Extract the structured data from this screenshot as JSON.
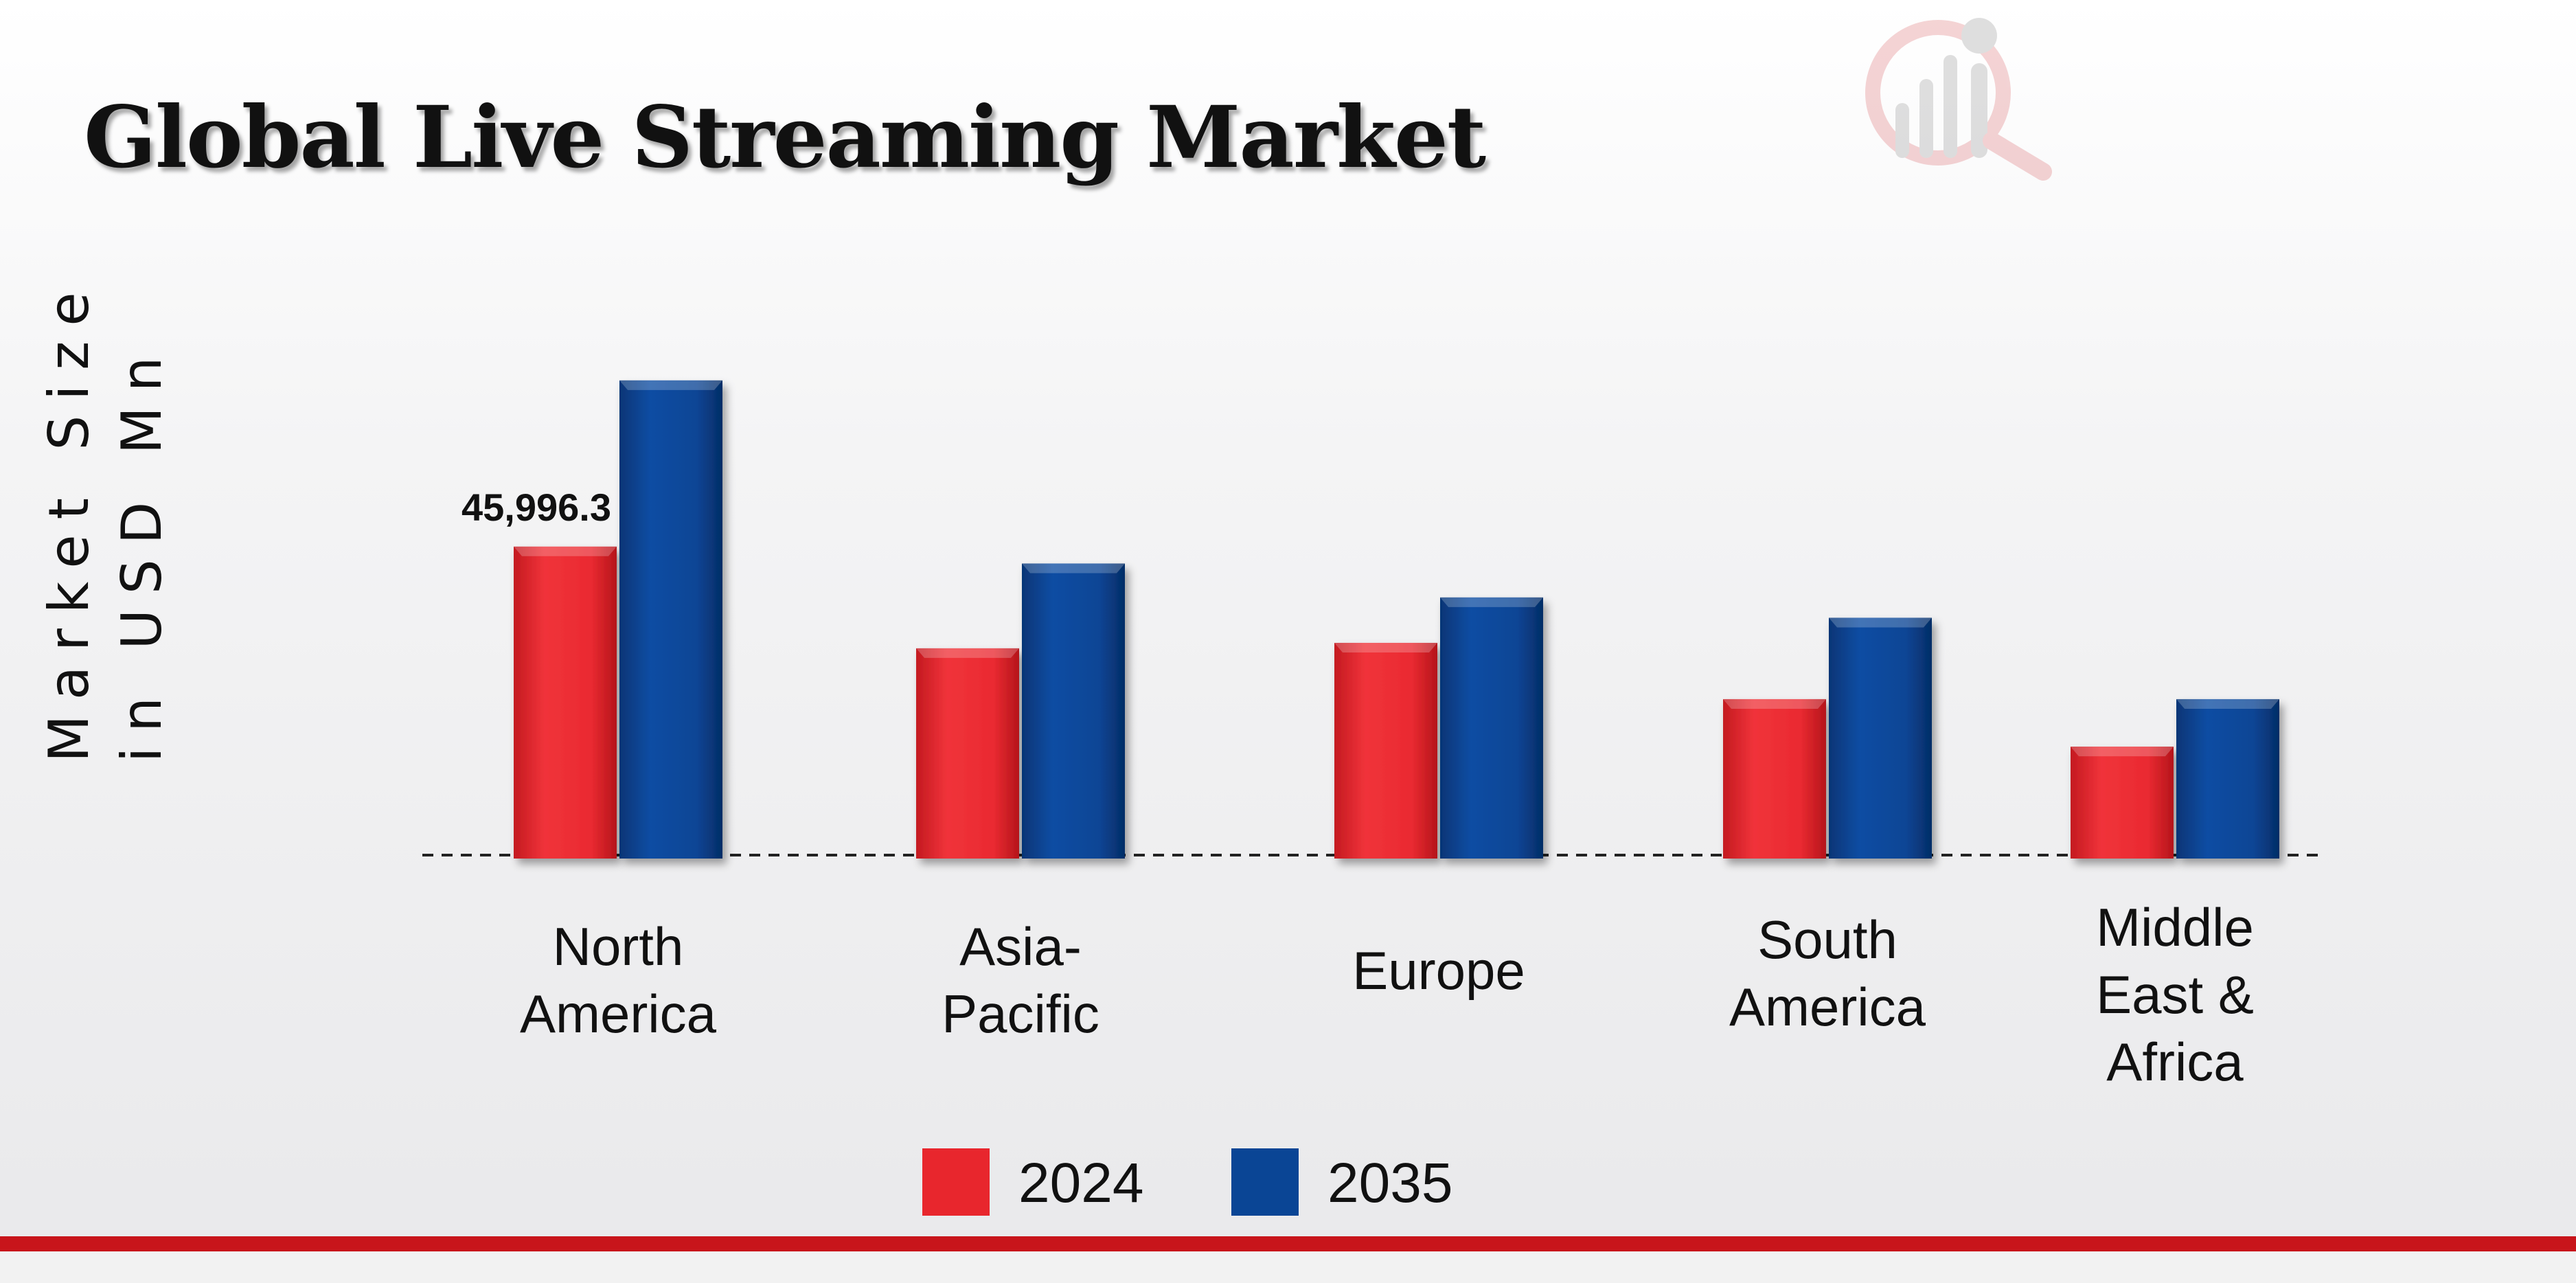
{
  "chart_data": {
    "type": "bar",
    "title": "Global Live Streaming Market",
    "ylabel": [
      "Market Size",
      "in USD Mn"
    ],
    "xlabel": "",
    "categories": [
      [
        "North",
        "America"
      ],
      [
        "Asia-",
        "Pacific"
      ],
      [
        "Europe"
      ],
      [
        "South",
        "America"
      ],
      [
        "Middle",
        "East &",
        "Africa"
      ]
    ],
    "series": [
      {
        "name": "2024",
        "color": "#e8262d",
        "values": [
          45996.3,
          31000,
          31800,
          23500,
          16500
        ]
      },
      {
        "name": "2035",
        "color": "#0a4595",
        "values": [
          70500,
          43500,
          38500,
          35500,
          23500
        ]
      }
    ],
    "data_labels": [
      {
        "series": 0,
        "index": 0,
        "text": "45,996.3"
      }
    ],
    "ylim": [
      0,
      80000
    ],
    "grid": false,
    "legend": "bottom-center"
  }
}
